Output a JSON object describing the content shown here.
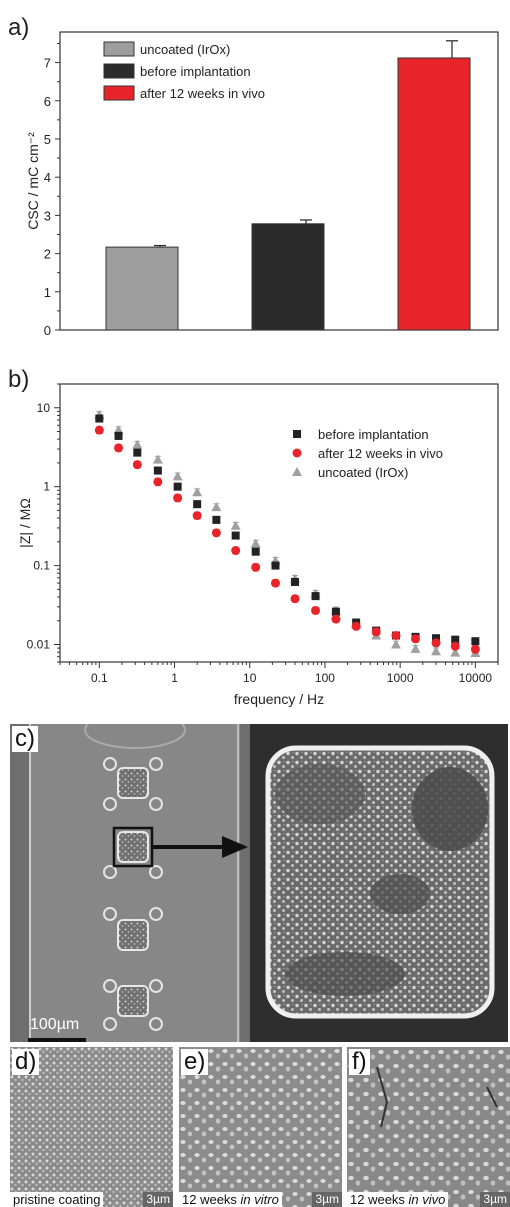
{
  "figure": {
    "panel_a_label": "a)",
    "panel_b_label": "b)",
    "panel_c_label": "c)",
    "panel_d_label": "d)",
    "panel_e_label": "e)",
    "panel_f_label": "f)"
  },
  "chart_data": [
    {
      "type": "bar",
      "categories": [
        "uncoated (IrOx)",
        "before implantation",
        "after 12 weeks in vivo"
      ],
      "values": [
        2.17,
        2.78,
        7.12
      ],
      "errors": [
        0.04,
        0.1,
        0.45
      ],
      "colors": [
        "#9e9e9e",
        "#2b2b2b",
        "#e8242a"
      ],
      "ylabel": "CSC / mC cm⁻²",
      "ylim": [
        0,
        7.8
      ],
      "yticks": [
        0,
        1,
        2,
        3,
        4,
        5,
        6,
        7
      ],
      "legend": [
        "uncoated (IrOx)",
        "before implantation",
        "after 12 weeks in vivo"
      ],
      "legend_position": "top-left",
      "grid": false
    },
    {
      "type": "scatter",
      "xlabel": "frequency / Hz",
      "ylabel": "|Z| / MΩ",
      "xscale": "log",
      "yscale": "log",
      "xlim": [
        0.03,
        20000
      ],
      "ylim": [
        0.006,
        20
      ],
      "xticks": [
        "0.1",
        "1",
        "10",
        "100",
        "1000",
        "10000"
      ],
      "yticks": [
        "0.01",
        "0.1",
        "1",
        "10"
      ],
      "legend_position": "top-right",
      "grid": false,
      "x": [
        0.1,
        0.18,
        0.32,
        0.6,
        1.1,
        2.0,
        3.6,
        6.5,
        12,
        22,
        40,
        75,
        140,
        260,
        480,
        880,
        1600,
        3000,
        5400,
        10000
      ],
      "series": [
        {
          "name": "before implantation",
          "marker": "square",
          "color": "#222222",
          "values": [
            7.3,
            4.4,
            2.7,
            1.6,
            1.0,
            0.6,
            0.38,
            0.24,
            0.15,
            0.1,
            0.062,
            0.041,
            0.026,
            0.019,
            0.015,
            0.013,
            0.0125,
            0.012,
            0.0115,
            0.011
          ]
        },
        {
          "name": "after 12 weeks in vivo",
          "marker": "circle",
          "color": "#e8242a",
          "values": [
            5.2,
            3.1,
            1.9,
            1.15,
            0.72,
            0.43,
            0.26,
            0.155,
            0.095,
            0.06,
            0.038,
            0.027,
            0.021,
            0.017,
            0.0145,
            0.013,
            0.0118,
            0.0105,
            0.0095,
            0.0087
          ]
        },
        {
          "name": "uncoated (IrOx)",
          "marker": "triangle",
          "color": "#a0a0a0",
          "values": [
            8.1,
            5.2,
            3.4,
            2.2,
            1.35,
            0.85,
            0.55,
            0.32,
            0.19,
            0.115,
            0.068,
            0.044,
            0.027,
            0.018,
            0.013,
            0.01,
            0.0088,
            0.0082,
            0.0079,
            0.0078
          ]
        }
      ]
    }
  ],
  "panel_c": {
    "scale_bar_label": "100µm"
  },
  "micrographs": [
    {
      "caption_prefix": "pristine coating",
      "caption_emph": "",
      "scale": "3µm"
    },
    {
      "caption_prefix": "12 weeks ",
      "caption_emph": "in vitro",
      "scale": "3µm"
    },
    {
      "caption_prefix": "12 weeks ",
      "caption_emph": "in vivo",
      "scale": "3µm"
    }
  ]
}
